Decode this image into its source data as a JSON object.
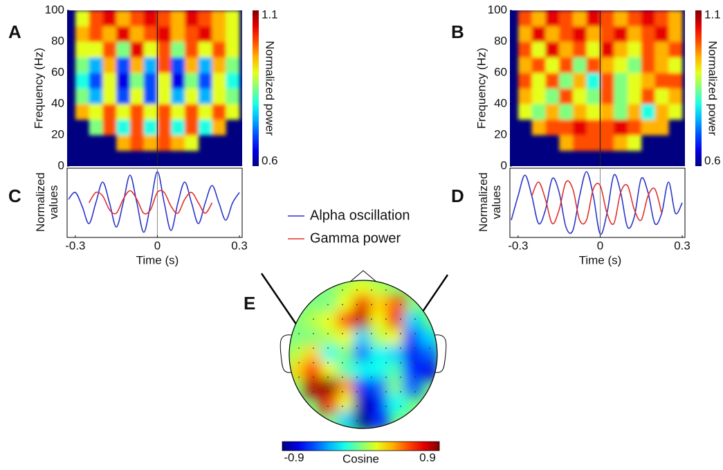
{
  "chart_data": [
    {
      "type": "heatmap",
      "panel_label": "A",
      "ylabel": "Frequency (Hz)",
      "x": [
        -0.325,
        -0.275,
        -0.225,
        -0.175,
        -0.125,
        -0.075,
        -0.025,
        0.025,
        0.075,
        0.125,
        0.175,
        0.225,
        0.275,
        0.325
      ],
      "y": [
        5,
        15,
        25,
        35,
        45,
        55,
        65,
        75,
        85,
        95
      ],
      "z": [
        [
          null,
          null,
          null,
          null,
          null,
          null,
          null,
          null,
          null,
          null,
          null,
          null,
          null,
          null
        ],
        [
          null,
          null,
          null,
          null,
          0.95,
          1.0,
          0.95,
          1.0,
          0.95,
          0.9,
          null,
          null,
          null,
          null
        ],
        [
          null,
          null,
          0.85,
          1.0,
          0.8,
          1.0,
          0.8,
          1.0,
          0.8,
          1.0,
          0.8,
          0.95,
          null,
          null
        ],
        [
          null,
          0.95,
          0.9,
          1.0,
          0.9,
          1.0,
          0.9,
          1.0,
          0.9,
          1.0,
          0.9,
          1.0,
          0.9,
          null
        ],
        [
          null,
          0.85,
          0.75,
          0.9,
          0.7,
          0.9,
          0.7,
          0.9,
          0.75,
          0.9,
          0.75,
          0.9,
          0.85,
          null
        ],
        [
          null,
          0.8,
          0.7,
          0.9,
          0.65,
          0.85,
          0.7,
          0.9,
          0.65,
          0.85,
          0.7,
          0.9,
          0.8,
          null
        ],
        [
          null,
          0.85,
          0.75,
          0.95,
          0.7,
          0.95,
          0.75,
          1.0,
          0.7,
          0.95,
          0.75,
          0.95,
          0.85,
          null
        ],
        [
          null,
          0.9,
          0.9,
          1.0,
          0.85,
          1.05,
          0.9,
          1.0,
          0.85,
          1.0,
          0.9,
          1.0,
          0.9,
          null
        ],
        [
          null,
          0.95,
          1.0,
          0.95,
          1.05,
          0.95,
          1.0,
          1.05,
          0.95,
          1.0,
          1.05,
          0.95,
          0.9,
          null
        ],
        [
          null,
          0.9,
          1.0,
          1.05,
          0.95,
          1.0,
          1.05,
          1.0,
          0.95,
          1.05,
          1.0,
          0.95,
          0.9,
          null
        ]
      ],
      "xlim": [
        -0.33,
        0.31
      ],
      "ylim": [
        0,
        100
      ],
      "yticks": [
        0,
        20,
        40,
        60,
        80,
        100
      ],
      "vline": 0,
      "colorbar": {
        "label": "Normalized power",
        "lim": [
          0.6,
          1.1
        ],
        "ticks": [
          0.6,
          1.1
        ]
      }
    },
    {
      "type": "heatmap",
      "panel_label": "B",
      "ylabel": "Frequency (Hz)",
      "x": [
        -0.325,
        -0.275,
        -0.225,
        -0.175,
        -0.125,
        -0.075,
        -0.025,
        0.025,
        0.075,
        0.125,
        0.175,
        0.225,
        0.275,
        0.325
      ],
      "y": [
        5,
        15,
        25,
        35,
        45,
        55,
        65,
        75,
        85,
        95
      ],
      "z": [
        [
          null,
          null,
          null,
          null,
          null,
          null,
          null,
          null,
          null,
          null,
          null,
          null,
          null,
          null
        ],
        [
          null,
          null,
          null,
          null,
          0.95,
          1.0,
          1.0,
          1.0,
          0.95,
          0.9,
          null,
          null,
          null,
          null
        ],
        [
          null,
          null,
          0.95,
          1.0,
          1.0,
          1.05,
          1.0,
          1.0,
          1.05,
          1.0,
          0.95,
          0.95,
          null,
          null
        ],
        [
          null,
          0.9,
          0.85,
          0.95,
          0.85,
          0.95,
          0.9,
          0.95,
          0.85,
          0.95,
          0.8,
          0.95,
          0.9,
          null
        ],
        [
          null,
          0.95,
          0.9,
          0.85,
          1.0,
          0.9,
          0.85,
          1.0,
          0.85,
          0.9,
          1.0,
          0.9,
          0.95,
          null
        ],
        [
          null,
          1.0,
          0.9,
          1.0,
          0.85,
          0.95,
          0.8,
          1.0,
          0.85,
          0.9,
          0.95,
          1.0,
          1.0,
          null
        ],
        [
          null,
          0.95,
          1.0,
          0.9,
          1.0,
          0.85,
          1.0,
          0.95,
          0.9,
          0.85,
          1.0,
          0.95,
          0.9,
          null
        ],
        [
          null,
          1.0,
          0.9,
          1.05,
          0.95,
          1.0,
          0.9,
          1.05,
          0.95,
          0.9,
          1.0,
          0.95,
          1.0,
          null
        ],
        [
          null,
          0.95,
          1.05,
          0.95,
          1.0,
          1.05,
          0.95,
          1.0,
          1.05,
          0.95,
          1.0,
          1.05,
          0.95,
          null
        ],
        [
          null,
          1.0,
          0.95,
          1.05,
          1.0,
          0.95,
          1.05,
          1.0,
          0.95,
          1.0,
          1.05,
          1.0,
          0.95,
          null
        ]
      ],
      "xlim": [
        -0.33,
        0.31
      ],
      "ylim": [
        0,
        100
      ],
      "yticks": [
        0,
        20,
        40,
        60,
        80,
        100
      ],
      "vline": 0,
      "colorbar": {
        "label": "Normalized power",
        "lim": [
          0.6,
          1.1
        ],
        "ticks": [
          0.6,
          1.1
        ]
      }
    },
    {
      "type": "line",
      "panel_label": "C",
      "xlabel": "Time (s)",
      "ylabel": "Normalized values",
      "x": [
        -0.325,
        -0.3,
        -0.275,
        -0.25,
        -0.225,
        -0.2,
        -0.175,
        -0.15,
        -0.125,
        -0.1,
        -0.075,
        -0.05,
        -0.025,
        0,
        0.025,
        0.05,
        0.075,
        0.1,
        0.125,
        0.15,
        0.175,
        0.2,
        0.225,
        0.25,
        0.275,
        0.3
      ],
      "series": [
        {
          "name": "Alpha oscillation",
          "color": "#2b35c8",
          "values": [
            0.1,
            0.3,
            -0.1,
            -0.6,
            0.0,
            0.6,
            0.0,
            -0.7,
            0.0,
            0.8,
            0.0,
            -0.85,
            -0.05,
            0.9,
            0.0,
            -0.8,
            0.0,
            0.6,
            0.0,
            -0.6,
            0.0,
            0.5,
            0.0,
            -0.5,
            0.0,
            0.3
          ]
        },
        {
          "name": "Gamma power",
          "color": "#e0302a",
          "values": [
            null,
            null,
            null,
            0.0,
            0.3,
            0.2,
            -0.2,
            -0.3,
            0.1,
            0.35,
            0.1,
            -0.3,
            -0.2,
            0.3,
            0.3,
            -0.1,
            -0.3,
            0.1,
            0.3,
            0.0,
            -0.3,
            0.0,
            null,
            null,
            null,
            null
          ]
        }
      ],
      "xlim": [
        -0.33,
        0.31
      ],
      "ylim": [
        -1,
        1
      ],
      "xticks": [
        -0.3,
        0,
        0.3
      ],
      "vline": 0
    },
    {
      "type": "line",
      "panel_label": "D",
      "xlabel": "Time (s)",
      "ylabel": "Normalized values",
      "x": [
        -0.325,
        -0.3,
        -0.275,
        -0.25,
        -0.225,
        -0.2,
        -0.175,
        -0.15,
        -0.125,
        -0.1,
        -0.075,
        -0.05,
        -0.025,
        0,
        0.025,
        0.05,
        0.075,
        0.1,
        0.125,
        0.15,
        0.175,
        0.2,
        0.225,
        0.25,
        0.275,
        0.3
      ],
      "series": [
        {
          "color": "#2b35c8",
          "values": [
            -0.5,
            0.2,
            0.8,
            0.2,
            -0.6,
            -0.2,
            0.7,
            0.3,
            -0.7,
            -0.8,
            0.2,
            0.9,
            0.2,
            -0.9,
            -0.3,
            0.8,
            0.3,
            -0.7,
            -0.4,
            0.7,
            0.3,
            -0.6,
            -0.3,
            0.6,
            -0.3,
            0.0
          ]
        },
        {
          "color": "#e0302a",
          "values": [
            null,
            null,
            null,
            0.2,
            0.6,
            0.1,
            -0.6,
            -0.2,
            0.6,
            0.4,
            -0.5,
            -0.5,
            0.4,
            0.5,
            -0.3,
            -0.6,
            0.3,
            0.5,
            -0.2,
            -0.5,
            0.2,
            0.4,
            -0.3,
            null,
            null,
            null
          ]
        }
      ],
      "xlim": [
        -0.33,
        0.31
      ],
      "ylim": [
        -1,
        1
      ],
      "xticks": [
        -0.3,
        0,
        0.3
      ],
      "vline": 0
    },
    {
      "type": "topomap",
      "panel_label": "E",
      "z": [
        [
          null,
          null,
          null,
          0.1,
          0.2,
          0.1,
          null,
          null,
          null
        ],
        [
          null,
          null,
          0.0,
          0.2,
          0.7,
          0.3,
          0.5,
          null,
          null
        ],
        [
          null,
          0.1,
          0.2,
          0.6,
          0.8,
          0.2,
          0.7,
          -0.3,
          null
        ],
        [
          0.0,
          0.0,
          0.1,
          0.2,
          -0.3,
          0.1,
          0.2,
          -0.6,
          -0.3
        ],
        [
          0.1,
          0.3,
          -0.2,
          0.0,
          -0.5,
          -0.2,
          -0.3,
          -0.7,
          -0.5
        ],
        [
          0.3,
          0.6,
          0.2,
          -0.1,
          -0.2,
          -0.2,
          -0.1,
          -0.6,
          -0.7
        ],
        [
          null,
          0.8,
          0.9,
          0.4,
          -0.6,
          -0.5,
          0.0,
          -0.5,
          null
        ],
        [
          null,
          null,
          0.7,
          0.2,
          -0.8,
          -0.7,
          -0.2,
          null,
          null
        ],
        [
          null,
          null,
          null,
          -0.3,
          -0.9,
          -0.6,
          null,
          null,
          null
        ]
      ],
      "colorbar": {
        "label": "Cosine",
        "lim": [
          -0.9,
          0.9
        ],
        "ticks": [
          -0.9,
          0.9
        ]
      }
    }
  ]
}
